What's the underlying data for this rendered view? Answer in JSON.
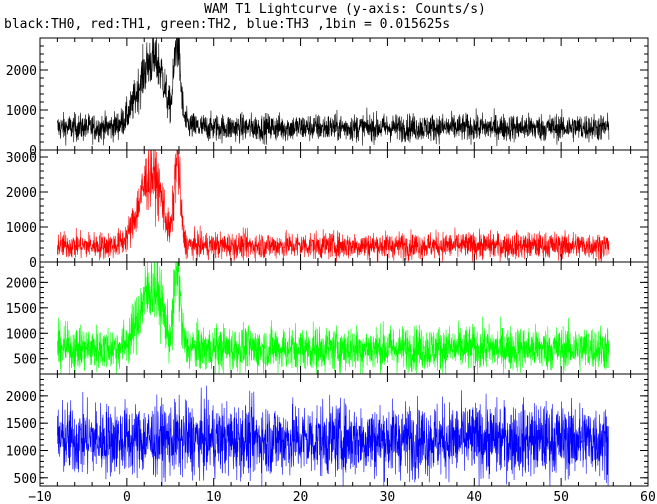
{
  "title": "WAM T1 Lightcurve (y-axis: Counts/s)",
  "subtitle": "black:TH0, red:TH1, green:TH2, blue:TH3 ,1bin = 0.015625s",
  "chart_data": [
    {
      "type": "line",
      "series": [
        {
          "name": "TH0",
          "color": "#000000"
        }
      ],
      "x_range": [
        -10,
        60
      ],
      "xlim": [
        -10,
        60
      ],
      "ylim": [
        0,
        2800
      ],
      "yticks": [
        0,
        1000,
        2000
      ],
      "baseline": 560,
      "noise": 170,
      "peaks": [
        {
          "x": 3.0,
          "h": 1700,
          "w": 1.6
        },
        {
          "x": 5.8,
          "h": 1900,
          "w": 0.35
        }
      ],
      "dip": {
        "x": 4.9,
        "h": 350,
        "w": 0.4
      }
    },
    {
      "type": "line",
      "series": [
        {
          "name": "TH1",
          "color": "#ff0000"
        }
      ],
      "x_range": [
        -10,
        60
      ],
      "xlim": [
        -10,
        60
      ],
      "ylim": [
        0,
        3200
      ],
      "yticks": [
        0,
        1000,
        2000,
        3000
      ],
      "baseline": 470,
      "noise": 190,
      "peaks": [
        {
          "x": 2.8,
          "h": 2000,
          "w": 1.4
        },
        {
          "x": 5.8,
          "h": 2300,
          "w": 0.35
        }
      ],
      "dip": {
        "x": 4.9,
        "h": 300,
        "w": 0.4
      }
    },
    {
      "type": "line",
      "series": [
        {
          "name": "TH2",
          "color": "#00ff00"
        }
      ],
      "x_range": [
        -10,
        60
      ],
      "xlim": [
        -10,
        60
      ],
      "ylim": [
        200,
        2400
      ],
      "yticks": [
        500,
        1000,
        1500,
        2000
      ],
      "baseline": 700,
      "noise": 220,
      "peaks": [
        {
          "x": 2.9,
          "h": 1200,
          "w": 1.4
        },
        {
          "x": 5.8,
          "h": 1450,
          "w": 0.35
        }
      ],
      "dip": {
        "x": 4.9,
        "h": 250,
        "w": 0.4
      }
    },
    {
      "type": "line",
      "series": [
        {
          "name": "TH3",
          "color": "#0000ff"
        }
      ],
      "x_range": [
        -10,
        60
      ],
      "xlim": [
        -10,
        60
      ],
      "ylim": [
        350,
        2400
      ],
      "yticks": [
        500,
        1000,
        1500,
        2000
      ],
      "baseline": 1200,
      "noise": 330,
      "peaks": [],
      "dip": null
    }
  ],
  "xaxis": {
    "ticks": [
      -10,
      0,
      10,
      20,
      30,
      40,
      50,
      60
    ],
    "labels": [
      "−10",
      "0",
      "10",
      "20",
      "30",
      "40",
      "50",
      "60"
    ],
    "data_range": [
      -8.0,
      55.5
    ]
  }
}
